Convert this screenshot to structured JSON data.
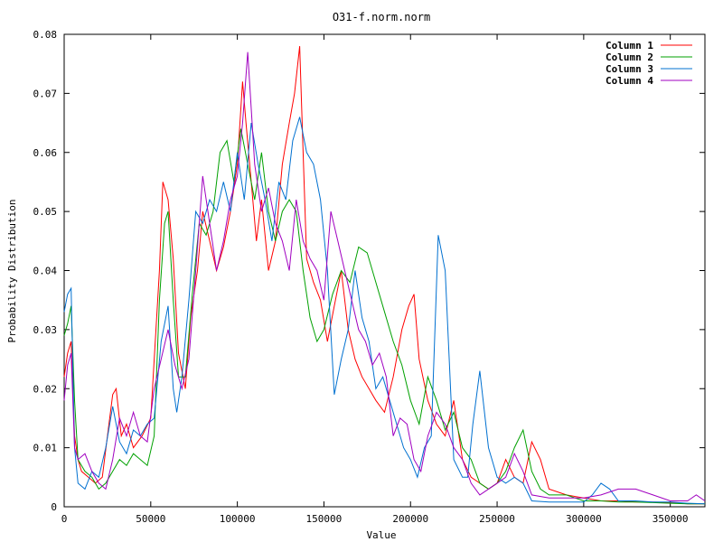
{
  "chart_data": {
    "type": "line",
    "title": "O31-f.norm.norm",
    "xlabel": "Value",
    "ylabel": "Probability Distribution",
    "xlim": [
      0,
      370000
    ],
    "ylim": [
      0,
      0.08
    ],
    "xticks": [
      0,
      50000,
      100000,
      150000,
      200000,
      250000,
      300000,
      350000
    ],
    "yticks": [
      0,
      0.01,
      0.02,
      0.03,
      0.04,
      0.05,
      0.06,
      0.07,
      0.08
    ],
    "ytick_labels": [
      "0",
      "0.01",
      "0.02",
      "0.03",
      "0.04",
      "0.05",
      "0.06",
      "0.07",
      "0.08"
    ],
    "grid": false,
    "legend_position": "top-right",
    "series": [
      {
        "name": "Column 1",
        "color": "#ff0000",
        "x": [
          0,
          2000,
          4000,
          6000,
          8000,
          10000,
          14000,
          18000,
          22000,
          25000,
          28000,
          30000,
          33000,
          36000,
          40000,
          45000,
          50000,
          55000,
          57000,
          60000,
          63000,
          66000,
          70000,
          73000,
          77000,
          80000,
          84000,
          88000,
          92000,
          96000,
          100000,
          103000,
          105000,
          108000,
          111000,
          114000,
          118000,
          122000,
          126000,
          130000,
          133000,
          136000,
          138000,
          140000,
          144000,
          148000,
          152000,
          156000,
          160000,
          164000,
          168000,
          172000,
          176000,
          180000,
          185000,
          190000,
          195000,
          199000,
          202000,
          205000,
          210000,
          215000,
          220000,
          225000,
          230000,
          235000,
          240000,
          245000,
          250000,
          255000,
          260000,
          265000,
          270000,
          275000,
          280000,
          290000,
          300000,
          310000,
          320000,
          330000,
          340000,
          350000,
          360000,
          370000
        ],
        "y": [
          0.022,
          0.026,
          0.028,
          0.012,
          0.008,
          0.006,
          0.005,
          0.004,
          0.005,
          0.012,
          0.019,
          0.02,
          0.012,
          0.014,
          0.01,
          0.012,
          0.015,
          0.04,
          0.055,
          0.052,
          0.042,
          0.026,
          0.02,
          0.032,
          0.04,
          0.05,
          0.045,
          0.04,
          0.044,
          0.05,
          0.058,
          0.072,
          0.065,
          0.055,
          0.045,
          0.052,
          0.04,
          0.045,
          0.058,
          0.065,
          0.07,
          0.078,
          0.06,
          0.042,
          0.038,
          0.035,
          0.028,
          0.034,
          0.04,
          0.03,
          0.025,
          0.022,
          0.02,
          0.018,
          0.016,
          0.022,
          0.03,
          0.034,
          0.036,
          0.025,
          0.018,
          0.014,
          0.012,
          0.018,
          0.008,
          0.005,
          0.004,
          0.003,
          0.004,
          0.008,
          0.005,
          0.004,
          0.011,
          0.008,
          0.003,
          0.002,
          0.0015,
          0.001,
          0.001,
          0.0008,
          0.0008,
          0.0007,
          0.0005,
          0.0005
        ]
      },
      {
        "name": "Column 2",
        "color": "#00a000",
        "x": [
          0,
          2000,
          4000,
          6000,
          8000,
          12000,
          16000,
          20000,
          24000,
          28000,
          32000,
          36000,
          40000,
          44000,
          48000,
          52000,
          55000,
          58000,
          60000,
          63000,
          66000,
          70000,
          74000,
          78000,
          82000,
          86000,
          90000,
          94000,
          98000,
          102000,
          106000,
          110000,
          114000,
          118000,
          122000,
          126000,
          130000,
          134000,
          138000,
          142000,
          146000,
          150000,
          155000,
          160000,
          165000,
          170000,
          175000,
          180000,
          185000,
          190000,
          195000,
          200000,
          205000,
          210000,
          215000,
          220000,
          225000,
          230000,
          235000,
          240000,
          245000,
          250000,
          255000,
          260000,
          265000,
          270000,
          275000,
          280000,
          290000,
          300000,
          310000,
          320000,
          330000,
          340000,
          350000,
          360000,
          370000
        ],
        "y": [
          0.029,
          0.031,
          0.034,
          0.018,
          0.008,
          0.006,
          0.005,
          0.003,
          0.004,
          0.006,
          0.008,
          0.007,
          0.009,
          0.008,
          0.007,
          0.012,
          0.035,
          0.048,
          0.05,
          0.035,
          0.022,
          0.022,
          0.036,
          0.048,
          0.046,
          0.05,
          0.06,
          0.062,
          0.055,
          0.064,
          0.058,
          0.052,
          0.06,
          0.05,
          0.045,
          0.05,
          0.052,
          0.05,
          0.04,
          0.032,
          0.028,
          0.03,
          0.036,
          0.04,
          0.038,
          0.044,
          0.043,
          0.038,
          0.033,
          0.028,
          0.024,
          0.018,
          0.014,
          0.022,
          0.018,
          0.013,
          0.016,
          0.01,
          0.008,
          0.004,
          0.003,
          0.004,
          0.006,
          0.01,
          0.013,
          0.006,
          0.003,
          0.002,
          0.002,
          0.001,
          0.001,
          0.0008,
          0.0008,
          0.0007,
          0.0006,
          0.0005,
          0.0005
        ]
      },
      {
        "name": "Column 3",
        "color": "#0070d0",
        "x": [
          0,
          2000,
          4000,
          6000,
          8000,
          12000,
          16000,
          20000,
          24000,
          28000,
          32000,
          36000,
          40000,
          44000,
          48000,
          52000,
          56000,
          60000,
          63000,
          65000,
          68000,
          72000,
          76000,
          80000,
          84000,
          88000,
          92000,
          96000,
          100000,
          104000,
          108000,
          112000,
          116000,
          120000,
          124000,
          128000,
          132000,
          136000,
          140000,
          144000,
          148000,
          152000,
          156000,
          160000,
          164000,
          168000,
          172000,
          176000,
          180000,
          184000,
          188000,
          192000,
          196000,
          200000,
          204000,
          208000,
          212000,
          216000,
          220000,
          225000,
          230000,
          233000,
          236000,
          240000,
          245000,
          250000,
          255000,
          260000,
          265000,
          270000,
          280000,
          290000,
          300000,
          305000,
          310000,
          315000,
          320000,
          330000,
          340000,
          350000,
          360000,
          370000
        ],
        "y": [
          0.033,
          0.036,
          0.037,
          0.01,
          0.004,
          0.003,
          0.006,
          0.005,
          0.01,
          0.017,
          0.011,
          0.009,
          0.013,
          0.012,
          0.014,
          0.015,
          0.028,
          0.034,
          0.02,
          0.016,
          0.022,
          0.035,
          0.05,
          0.048,
          0.052,
          0.05,
          0.055,
          0.05,
          0.06,
          0.052,
          0.065,
          0.058,
          0.052,
          0.045,
          0.055,
          0.052,
          0.062,
          0.066,
          0.06,
          0.058,
          0.052,
          0.04,
          0.019,
          0.025,
          0.03,
          0.04,
          0.032,
          0.028,
          0.02,
          0.022,
          0.018,
          0.014,
          0.01,
          0.008,
          0.005,
          0.01,
          0.012,
          0.046,
          0.04,
          0.008,
          0.005,
          0.005,
          0.014,
          0.023,
          0.01,
          0.005,
          0.004,
          0.005,
          0.004,
          0.001,
          0.0008,
          0.0008,
          0.0008,
          0.002,
          0.004,
          0.003,
          0.001,
          0.001,
          0.0008,
          0.0008,
          0.0006,
          0.0005
        ]
      },
      {
        "name": "Column 4",
        "color": "#a000c0",
        "x": [
          0,
          2000,
          4000,
          6000,
          8000,
          12000,
          16000,
          20000,
          24000,
          28000,
          32000,
          36000,
          40000,
          44000,
          48000,
          52000,
          56000,
          60000,
          64000,
          68000,
          72000,
          76000,
          80000,
          84000,
          88000,
          92000,
          96000,
          100000,
          103000,
          106000,
          110000,
          114000,
          118000,
          122000,
          126000,
          130000,
          134000,
          138000,
          142000,
          146000,
          150000,
          154000,
          158000,
          162000,
          166000,
          170000,
          174000,
          178000,
          182000,
          186000,
          190000,
          194000,
          198000,
          202000,
          206000,
          210000,
          215000,
          220000,
          225000,
          230000,
          235000,
          240000,
          245000,
          250000,
          255000,
          260000,
          265000,
          270000,
          280000,
          290000,
          300000,
          310000,
          320000,
          330000,
          340000,
          350000,
          360000,
          365000,
          370000
        ],
        "y": [
          0.018,
          0.024,
          0.026,
          0.01,
          0.008,
          0.009,
          0.006,
          0.004,
          0.003,
          0.008,
          0.015,
          0.012,
          0.016,
          0.012,
          0.011,
          0.02,
          0.025,
          0.03,
          0.024,
          0.02,
          0.025,
          0.04,
          0.056,
          0.048,
          0.04,
          0.045,
          0.052,
          0.056,
          0.065,
          0.077,
          0.058,
          0.05,
          0.054,
          0.048,
          0.045,
          0.04,
          0.052,
          0.045,
          0.042,
          0.04,
          0.035,
          0.05,
          0.045,
          0.04,
          0.035,
          0.03,
          0.028,
          0.024,
          0.026,
          0.022,
          0.012,
          0.015,
          0.014,
          0.008,
          0.006,
          0.012,
          0.016,
          0.014,
          0.01,
          0.008,
          0.004,
          0.002,
          0.003,
          0.004,
          0.005,
          0.009,
          0.006,
          0.002,
          0.0015,
          0.0015,
          0.0015,
          0.002,
          0.003,
          0.003,
          0.002,
          0.001,
          0.001,
          0.002,
          0.001
        ]
      }
    ]
  }
}
